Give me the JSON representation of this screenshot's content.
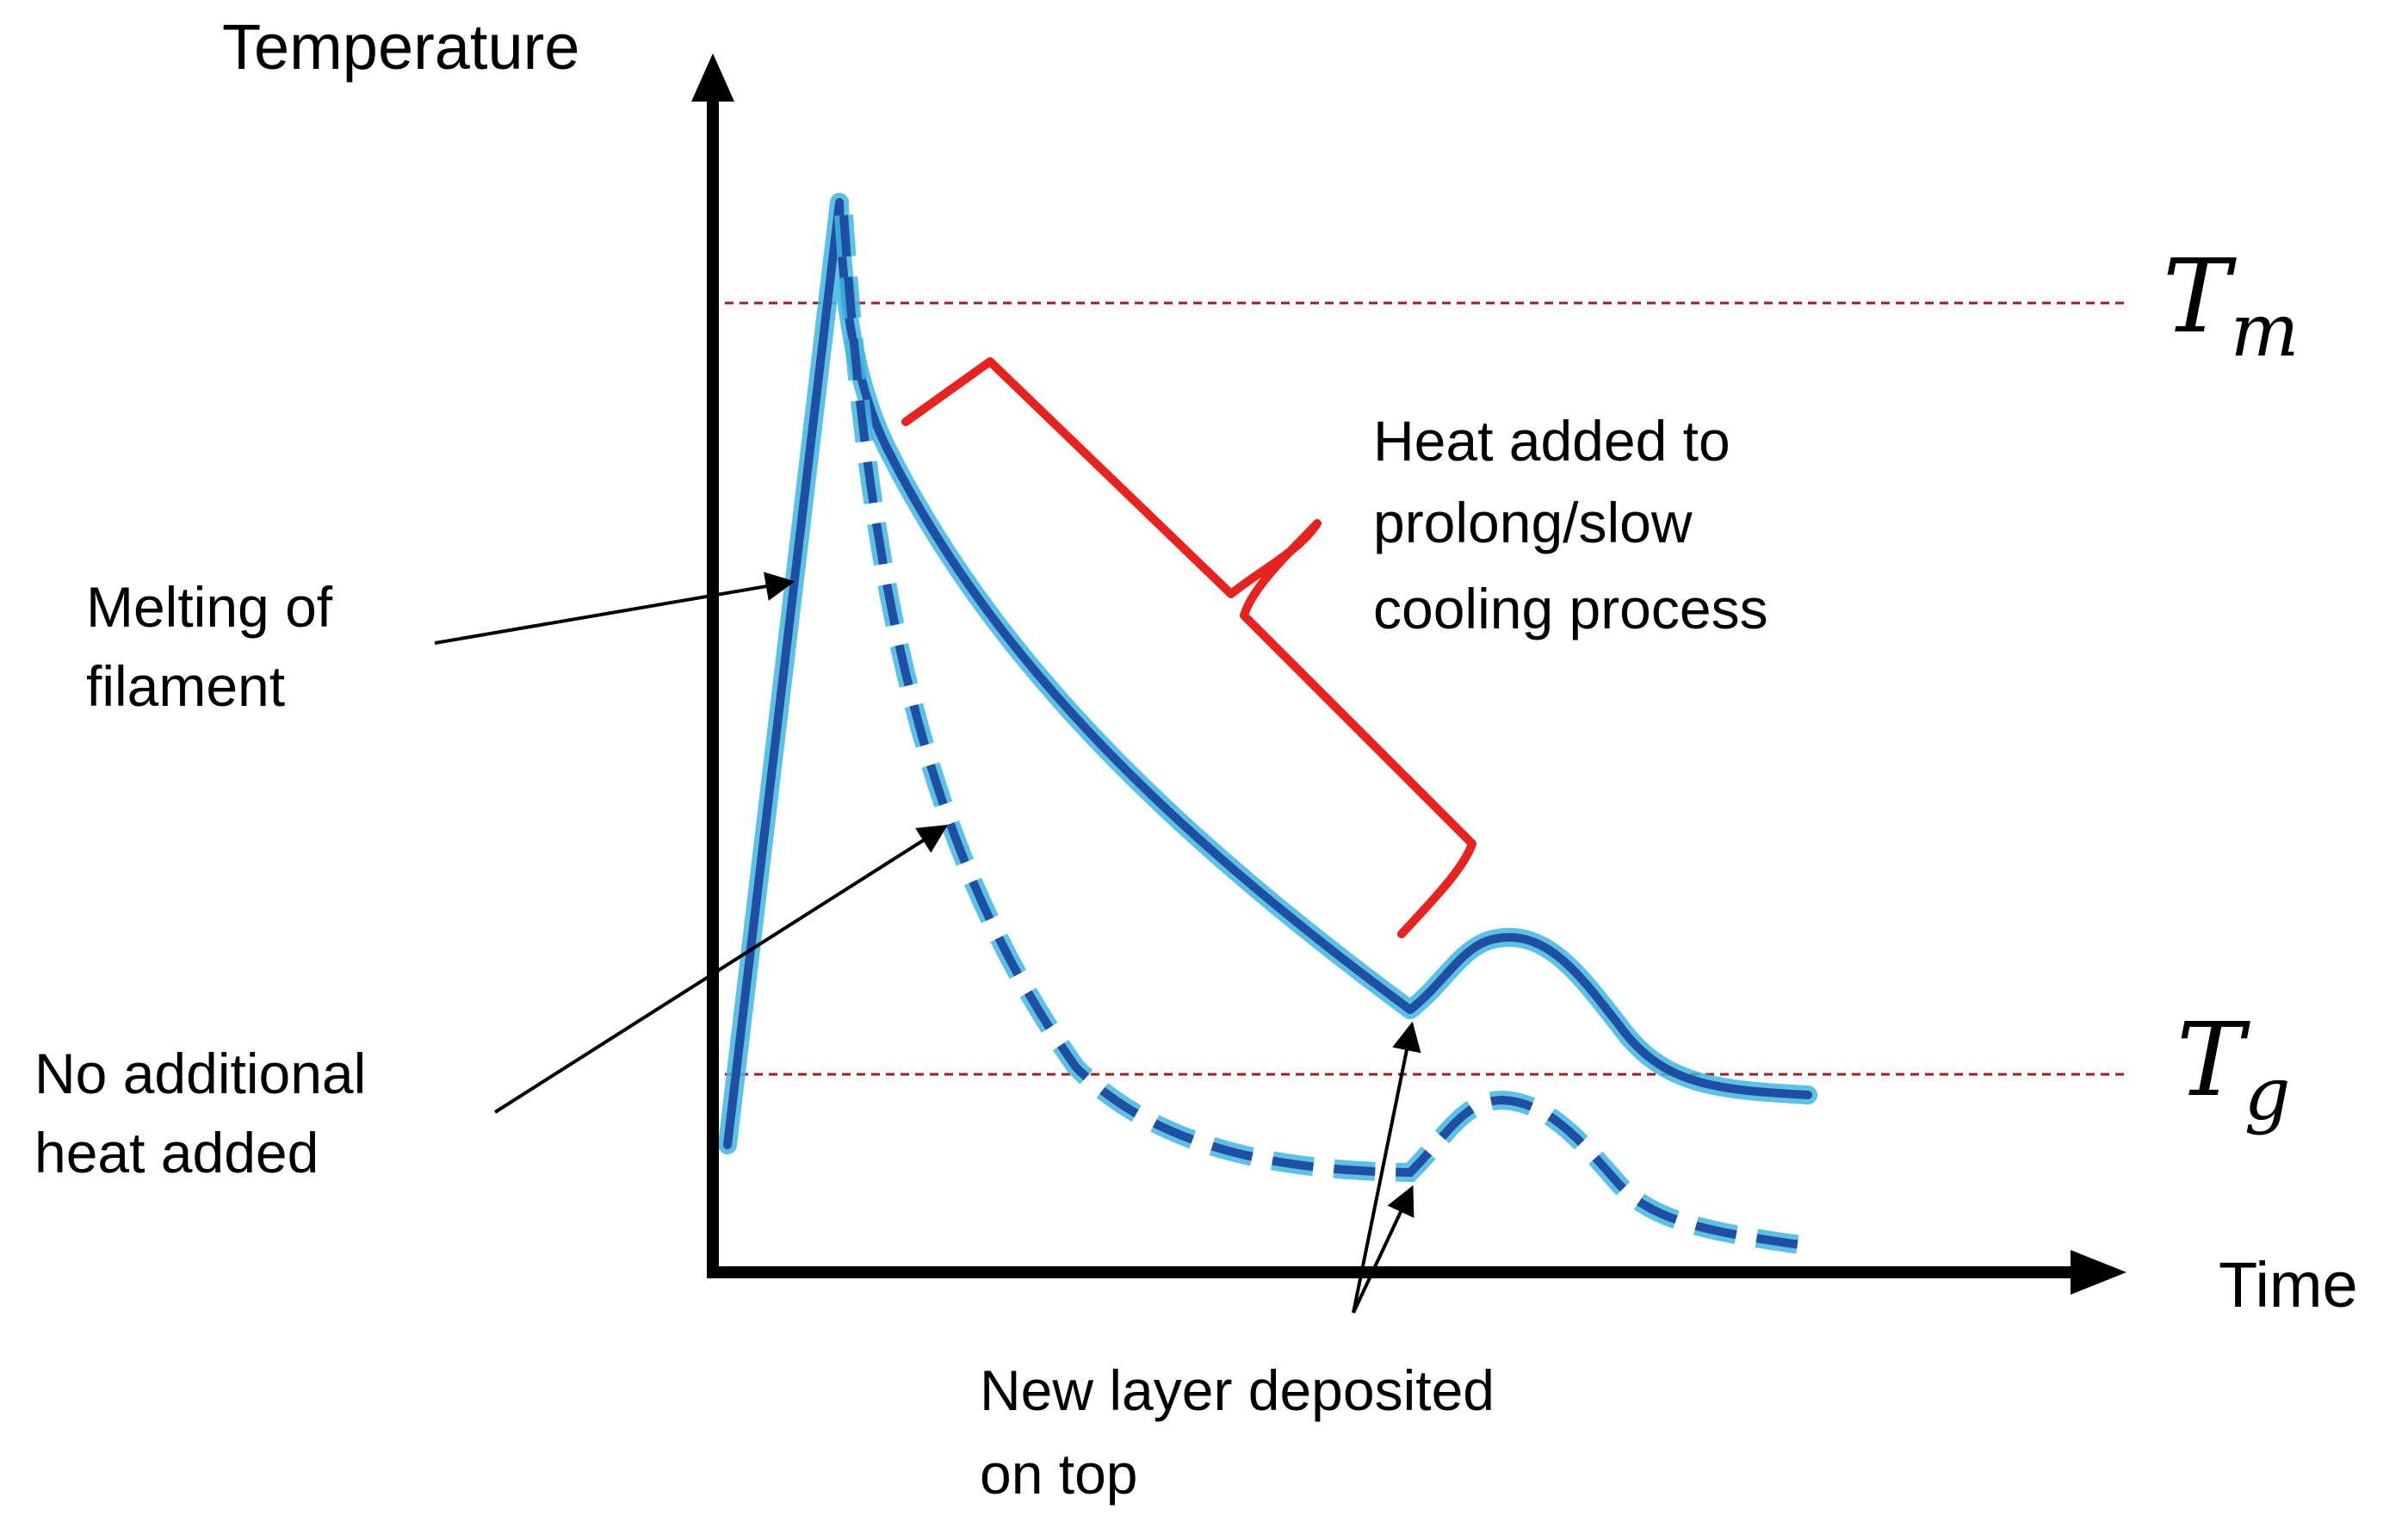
{
  "axes": {
    "y_label": "Temperature",
    "x_label": "Time"
  },
  "reference_lines": {
    "melting": {
      "symbol": "T",
      "subscript": "m"
    },
    "glass": {
      "symbol": "T",
      "subscript": "g"
    }
  },
  "annotations": {
    "melting": [
      "Melting of",
      "filament"
    ],
    "no_heat": [
      "No additional",
      "heat added"
    ],
    "heat_added": [
      "Heat added to",
      "prolong/slow",
      "cooling process"
    ],
    "new_layer": [
      "New layer deposited",
      "on top"
    ]
  },
  "curves": {
    "heated": {
      "style": "solid",
      "color": "#1f4fa3",
      "glow": "#3fb6e0"
    },
    "unheated": {
      "style": "dashed",
      "color": "#1f4fa3",
      "glow": "#3fb6e0"
    }
  },
  "colors": {
    "axis": "#000000",
    "reference_line": "#9a2020",
    "bracket": "#e8231f",
    "arrow": "#000000"
  }
}
